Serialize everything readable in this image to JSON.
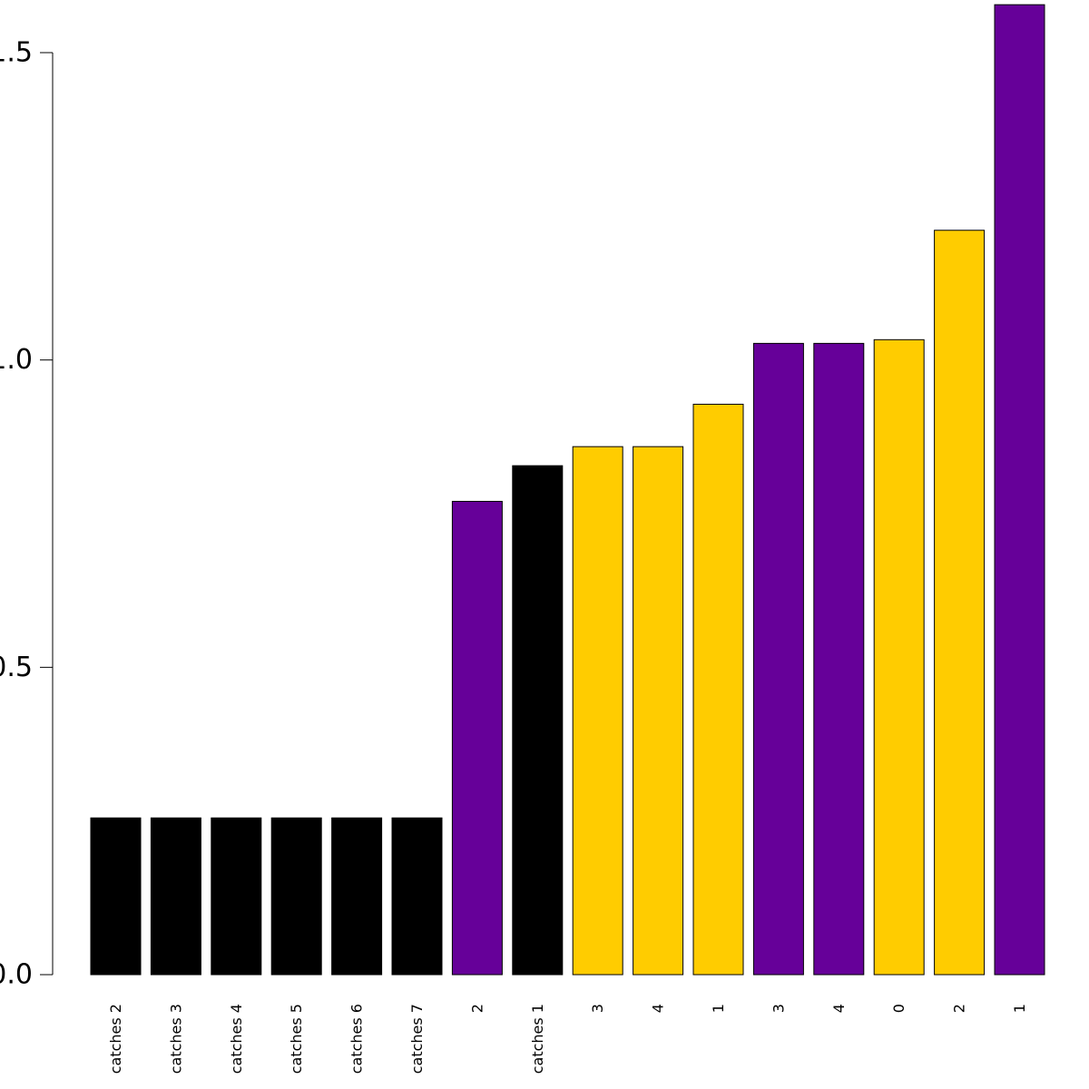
{
  "chart_data": {
    "type": "bar",
    "categories": [
      "catches 2",
      "catches 3",
      "catches 4",
      "catches 5",
      "catches 6",
      "catches 7",
      "2",
      "catches 1",
      "3",
      "4",
      "1",
      "3",
      "4",
      "0",
      "2",
      "1"
    ],
    "values": [
      0.255,
      0.255,
      0.255,
      0.255,
      0.255,
      0.255,
      0.77,
      0.828,
      0.859,
      0.859,
      0.928,
      1.027,
      1.027,
      1.033,
      1.211,
      1.578
    ],
    "bar_colors": [
      "#000000",
      "#000000",
      "#000000",
      "#000000",
      "#000000",
      "#000000",
      "#660099",
      "#000000",
      "#ffcc00",
      "#ffcc00",
      "#ffcc00",
      "#660099",
      "#660099",
      "#ffcc00",
      "#ffcc00",
      "#660099"
    ],
    "y_ticks": [
      0.0,
      0.5,
      1.0,
      1.5
    ],
    "y_tick_labels": [
      "0.0",
      "0.5",
      "1.0",
      "1.5"
    ],
    "ylim": [
      0,
      1.578
    ],
    "title": "",
    "xlabel": "",
    "ylabel": "",
    "grid": false,
    "legend": "none",
    "palette": {
      "black": "#000000",
      "purple": "#660099",
      "gold": "#ffcc00"
    }
  }
}
